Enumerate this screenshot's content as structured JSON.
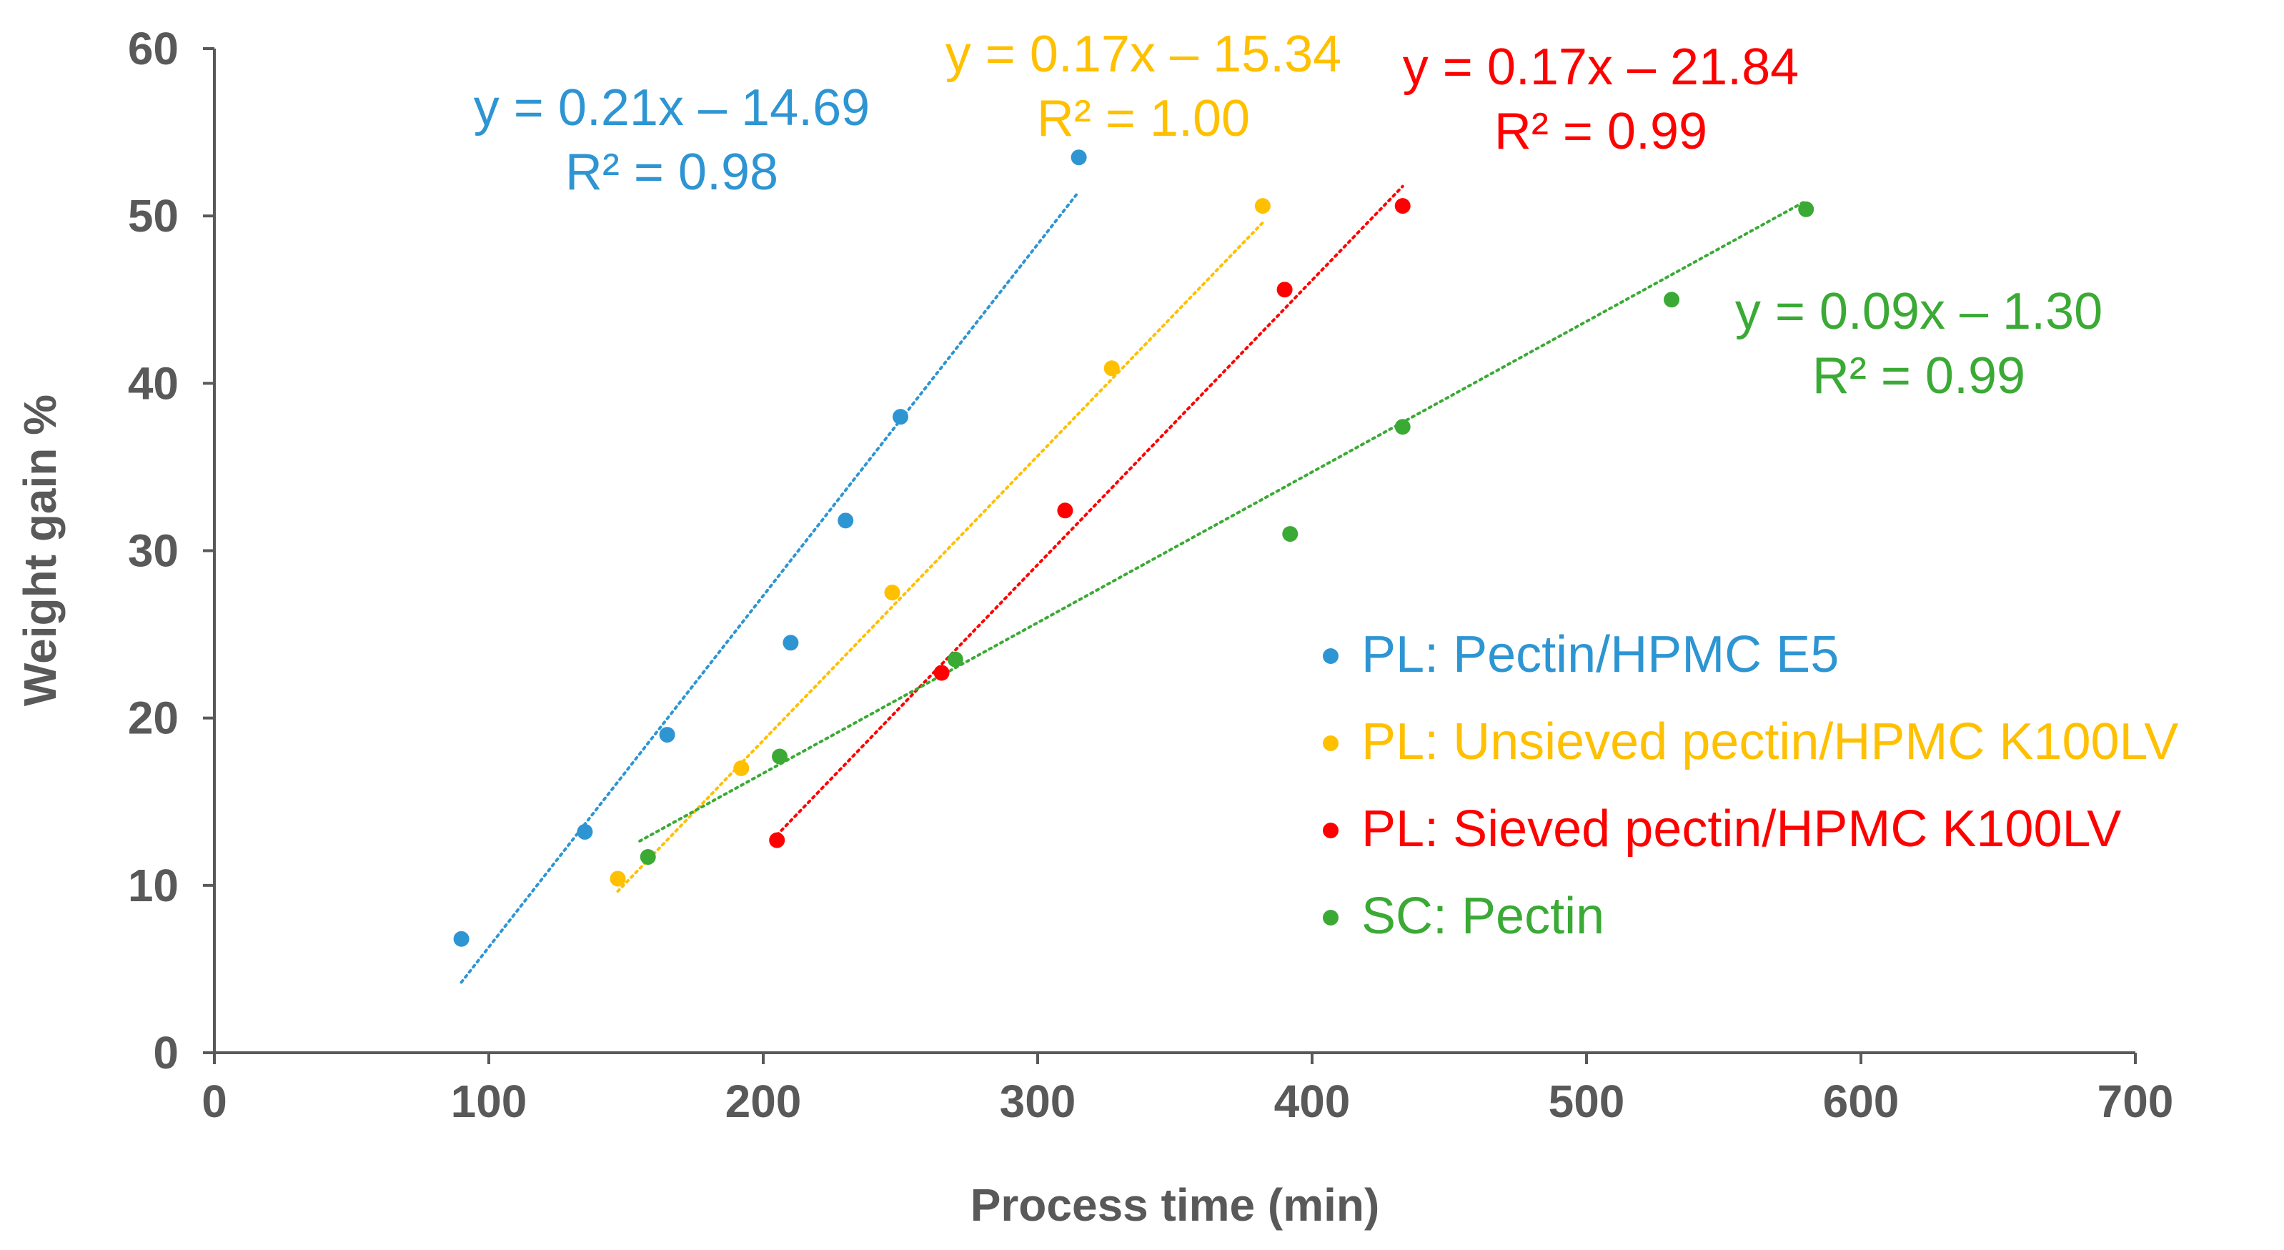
{
  "chart_data": {
    "type": "scatter",
    "title": "",
    "xlabel": "Process time (min)",
    "ylabel": "Weight gain %",
    "xlim": [
      0,
      700
    ],
    "ylim": [
      0,
      60
    ],
    "x_ticks": [
      "0",
      "100",
      "200",
      "300",
      "400",
      "500",
      "600",
      "700"
    ],
    "y_ticks": [
      "0",
      "10",
      "20",
      "30",
      "40",
      "50",
      "60"
    ],
    "grid": false,
    "legend_position": "right",
    "series": [
      {
        "name": "PL: Pectin/HPMC E5",
        "color": "#2E95D3",
        "x": [
          90,
          135,
          165,
          210,
          230,
          250,
          315
        ],
        "y": [
          6.8,
          13.2,
          19.0,
          24.5,
          31.8,
          38.0,
          53.5
        ],
        "trendline": {
          "slope": 0.21,
          "intercept": -14.69,
          "x_range": [
            90,
            315
          ]
        },
        "equation": "y = 0.21x – 14.69",
        "r2": "R² = 0.98"
      },
      {
        "name": "PL: Unsieved pectin/HPMC K100LV",
        "color": "#FFC000",
        "x": [
          147,
          192,
          247,
          327,
          382
        ],
        "y": [
          10.4,
          17.0,
          27.5,
          40.9,
          50.6
        ],
        "trendline": {
          "slope": 0.17,
          "intercept": -15.34,
          "x_range": [
            147,
            382
          ]
        },
        "equation": "y = 0.17x – 15.34",
        "r2": "R² = 1.00"
      },
      {
        "name": "PL: Sieved pectin/HPMC K100LV",
        "color": "#FF0000",
        "x": [
          205,
          265,
          310,
          390,
          433
        ],
        "y": [
          12.7,
          22.7,
          32.4,
          45.6,
          50.6
        ],
        "trendline": {
          "slope": 0.17,
          "intercept": -21.84,
          "x_range": [
            205,
            433
          ]
        },
        "equation": "y = 0.17x – 21.84",
        "r2": "R² = 0.99"
      },
      {
        "name": "SC: Pectin",
        "color": "#3AAA35",
        "x": [
          158,
          206,
          270,
          392,
          433,
          531,
          580
        ],
        "y": [
          11.7,
          17.7,
          23.5,
          31.0,
          37.4,
          45.0,
          50.4
        ],
        "trendline": {
          "slope": 0.09,
          "intercept": -1.3,
          "x_range": [
            155,
            580
          ]
        },
        "equation": "y = 0.09x – 1.30",
        "r2": "R² = 0.99"
      }
    ]
  }
}
